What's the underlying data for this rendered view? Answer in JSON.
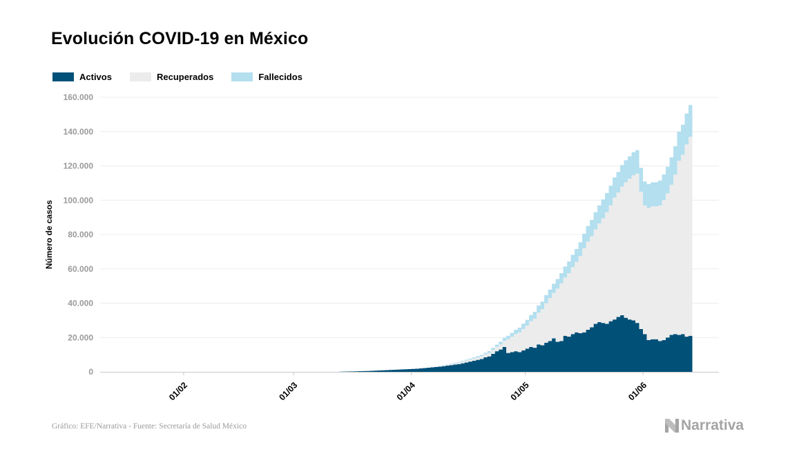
{
  "chart_data": {
    "type": "area",
    "title": "Evolución COVID-19 en México",
    "xlabel": "",
    "ylabel": "Número de casos",
    "ylim": [
      0,
      160000
    ],
    "yticks": [
      0,
      20000,
      40000,
      60000,
      80000,
      100000,
      120000,
      140000,
      160000
    ],
    "ytick_labels": [
      "0",
      "20.000",
      "40.000",
      "60.000",
      "80.000",
      "100.000",
      "120.000",
      "140.000",
      "160.000"
    ],
    "xlim": [
      "2020-01-10",
      "2020-06-21"
    ],
    "xticks": [
      "2020-02-01",
      "2020-03-01",
      "2020-04-01",
      "2020-05-01",
      "2020-06-01"
    ],
    "xtick_labels": [
      "01/02",
      "01/03",
      "01/04",
      "01/05",
      "01/06"
    ],
    "grid": true,
    "legend": "top-left",
    "stacked": true,
    "step": true,
    "series": [
      {
        "name": "Activos",
        "color": "#005078",
        "x_start": "2020-03-13",
        "values": [
          100,
          150,
          200,
          250,
          300,
          400,
          450,
          500,
          600,
          700,
          800,
          900,
          1000,
          1100,
          1200,
          1300,
          1400,
          1500,
          1600,
          1700,
          1800,
          2000,
          2200,
          2400,
          2600,
          2800,
          3000,
          3300,
          3600,
          3900,
          4200,
          4500,
          5000,
          5500,
          6000,
          6500,
          7000,
          7500,
          8500,
          9000,
          10500,
          12000,
          13000,
          14500,
          11000,
          11500,
          12000,
          11500,
          12500,
          13500,
          14500,
          14000,
          16000,
          15500,
          17000,
          18000,
          19500,
          17500,
          18000,
          21000,
          20500,
          22000,
          23000,
          22500,
          23000,
          24500,
          26000,
          28000,
          29000,
          28500,
          28000,
          29500,
          30500,
          32000,
          33000,
          31500,
          30500,
          30000,
          28500,
          25000,
          22000,
          18500,
          19000,
          19000,
          18000,
          18500,
          20000,
          21500,
          22000,
          21500,
          22000,
          20500,
          21000
        ]
      },
      {
        "name": "Recuperados",
        "color": "#ececec",
        "x_start": "2020-03-13",
        "values": [
          0,
          0,
          0,
          0,
          0,
          0,
          0,
          0,
          0,
          0,
          0,
          0,
          0,
          0,
          0,
          0,
          0,
          0,
          0,
          0,
          0,
          0,
          0,
          0,
          200,
          300,
          400,
          500,
          500,
          600,
          800,
          900,
          1000,
          1100,
          1200,
          1300,
          1400,
          1600,
          1700,
          2000,
          2200,
          2500,
          3000,
          3500,
          8000,
          9000,
          10000,
          11500,
          12500,
          13500,
          15000,
          17000,
          18500,
          21000,
          23000,
          25000,
          26500,
          31000,
          33500,
          34000,
          37000,
          39000,
          41000,
          45000,
          49000,
          51500,
          53000,
          55000,
          57500,
          61000,
          65000,
          67500,
          71000,
          72500,
          75000,
          79000,
          82000,
          84500,
          87000,
          80000,
          75000,
          77000,
          77500,
          77500,
          79000,
          81500,
          84000,
          87500,
          93000,
          101500,
          104500,
          112000,
          116000
        ]
      },
      {
        "name": "Fallecidos",
        "color": "#b3dfef",
        "x_start": "2020-03-13",
        "values": [
          0,
          0,
          0,
          0,
          0,
          0,
          0,
          0,
          0,
          0,
          0,
          0,
          0,
          0,
          0,
          0,
          0,
          0,
          0,
          0,
          0,
          0,
          0,
          0,
          50,
          80,
          100,
          150,
          200,
          300,
          350,
          400,
          450,
          500,
          550,
          650,
          750,
          800,
          900,
          1100,
          1300,
          1400,
          1600,
          1800,
          2000,
          2200,
          2500,
          2800,
          3100,
          3300,
          3600,
          4000,
          4200,
          4400,
          4700,
          5000,
          5300,
          5600,
          6000,
          6400,
          6800,
          7200,
          7600,
          8000,
          8500,
          9000,
          9500,
          10000,
          10500,
          11000,
          11200,
          11500,
          11800,
          12000,
          12500,
          12800,
          13100,
          13500,
          13700,
          13900,
          13900,
          13900,
          13900,
          14000,
          14500,
          15000,
          15500,
          16000,
          16500,
          17000,
          17500,
          18000,
          18500
        ]
      }
    ]
  },
  "footer": {
    "source": "Gráfico: EFE/Narrativa - Fuente: Secretaría de Salud México",
    "brand": "Narrativa"
  }
}
